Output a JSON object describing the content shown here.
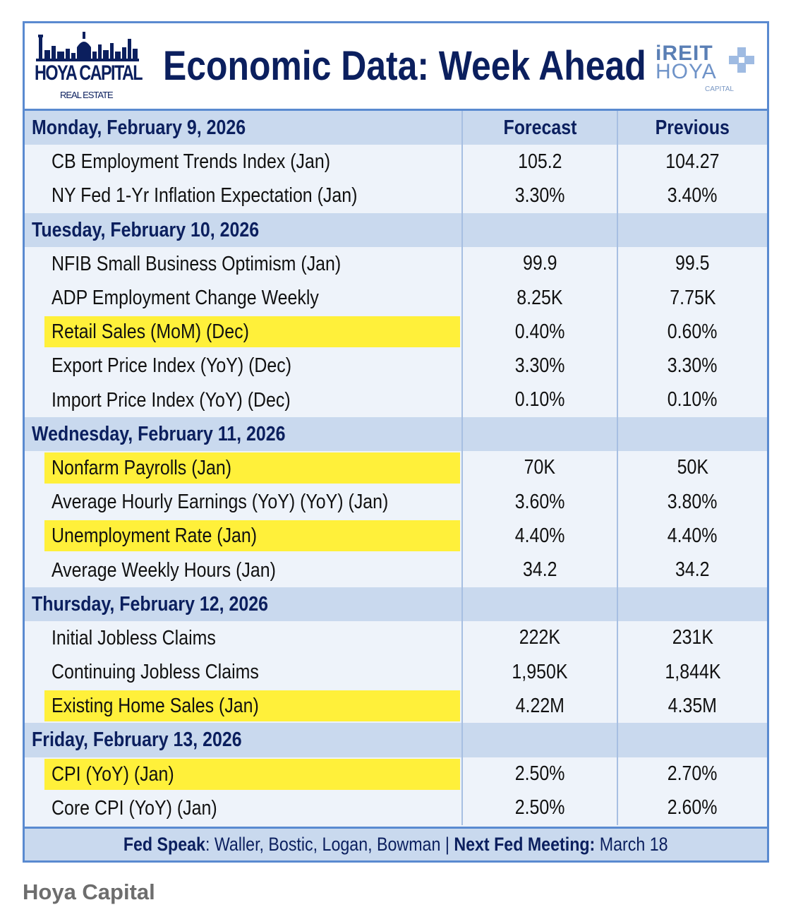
{
  "header": {
    "left_logo": {
      "name": "HOYA CAPITAL",
      "sub": "REAL ESTATE"
    },
    "title": "Economic Data: Week Ahead",
    "right_logo": {
      "line1": "iREIT",
      "line2": "HOYA",
      "line3": "CAPITAL"
    }
  },
  "columns": {
    "forecast": "Forecast",
    "previous": "Previous"
  },
  "days": [
    {
      "date": "Monday, February 9, 2026",
      "items": [
        {
          "label": "CB Employment Trends Index (Jan)",
          "forecast": "105.2",
          "previous": "104.27",
          "highlight": false
        },
        {
          "label": "NY Fed 1-Yr Inflation Expectation (Jan)",
          "forecast": "3.30%",
          "previous": "3.40%",
          "highlight": false
        }
      ]
    },
    {
      "date": "Tuesday, February 10, 2026",
      "items": [
        {
          "label": "NFIB Small Business Optimism (Jan)",
          "forecast": "99.9",
          "previous": "99.5",
          "highlight": false
        },
        {
          "label": "ADP Employment Change Weekly",
          "forecast": "8.25K",
          "previous": "7.75K",
          "highlight": false
        },
        {
          "label": "Retail Sales (MoM) (Dec)",
          "forecast": "0.40%",
          "previous": "0.60%",
          "highlight": true
        },
        {
          "label": "Export Price Index (YoY) (Dec)",
          "forecast": "3.30%",
          "previous": "3.30%",
          "highlight": false
        },
        {
          "label": "Import Price Index (YoY) (Dec)",
          "forecast": "0.10%",
          "previous": "0.10%",
          "highlight": false
        }
      ]
    },
    {
      "date": "Wednesday, February 11, 2026",
      "items": [
        {
          "label": "Nonfarm Payrolls (Jan)",
          "forecast": "70K",
          "previous": "50K",
          "highlight": true
        },
        {
          "label": "Average Hourly Earnings (YoY) (YoY) (Jan)",
          "forecast": "3.60%",
          "previous": "3.80%",
          "highlight": false
        },
        {
          "label": "Unemployment Rate (Jan)",
          "forecast": "4.40%",
          "previous": "4.40%",
          "highlight": true
        },
        {
          "label": "Average Weekly Hours (Jan)",
          "forecast": "34.2",
          "previous": "34.2",
          "highlight": false
        }
      ]
    },
    {
      "date": "Thursday, February 12, 2026",
      "items": [
        {
          "label": "Initial Jobless Claims",
          "forecast": "222K",
          "previous": "231K",
          "highlight": false
        },
        {
          "label": "Continuing Jobless Claims",
          "forecast": "1,950K",
          "previous": "1,844K",
          "highlight": false
        },
        {
          "label": "Existing Home Sales (Jan)",
          "forecast": "4.22M",
          "previous": "4.35M",
          "highlight": true
        }
      ]
    },
    {
      "date": "Friday, February 13, 2026",
      "items": [
        {
          "label": "CPI (YoY) (Jan)",
          "forecast": "2.50%",
          "previous": "2.70%",
          "highlight": true
        },
        {
          "label": "Core CPI (YoY) (Jan)",
          "forecast": "2.50%",
          "previous": "2.60%",
          "highlight": false
        }
      ]
    }
  ],
  "footer": {
    "fed_speak_label": "Fed Speak",
    "fed_speak_names": ": Waller, Bostic, Logan, Bowman",
    "separator": " | ",
    "next_meeting_label": "Next Fed Meeting:",
    "next_meeting_date": " March 18"
  },
  "source": "Hoya Capital",
  "colors": {
    "navy": "#0b1f5e",
    "border_blue": "#5a8ad0",
    "day_row_bg": "#c9d9ee",
    "item_row_bg": "#eef3fa",
    "highlight_yellow": "#fff03a"
  }
}
